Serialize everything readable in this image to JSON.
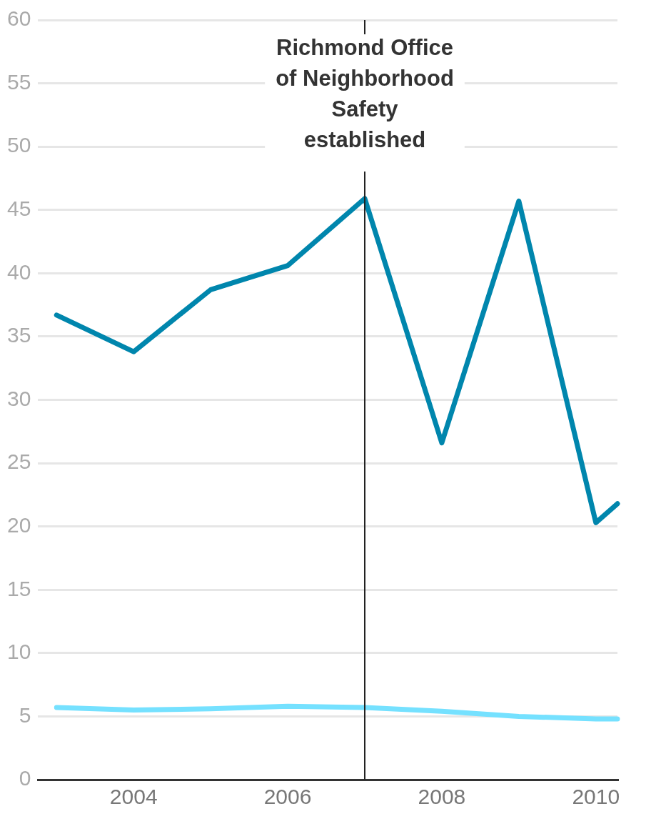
{
  "chart_data": {
    "type": "line",
    "x": [
      2003,
      2004,
      2005,
      2006,
      2007,
      2008,
      2009,
      2010,
      2010.28
    ],
    "series": [
      {
        "color": "#0086ad",
        "values": [
          36.7,
          33.8,
          38.7,
          40.6,
          45.9,
          26.6,
          45.7,
          20.3,
          21.8
        ]
      },
      {
        "color": "#75e1ff",
        "values": [
          5.7,
          5.5,
          5.6,
          5.8,
          5.7,
          5.4,
          5.0,
          4.8,
          4.8
        ]
      }
    ],
    "xlim": [
      2002.76,
      2010.28
    ],
    "xticks": [
      2004,
      2006,
      2008,
      2010
    ],
    "ylim": [
      0,
      60
    ],
    "yticks": [
      0,
      5,
      10,
      15,
      20,
      25,
      30,
      35,
      40,
      45,
      50,
      55,
      60
    ],
    "ref_lines": [
      {
        "axis": "x",
        "value": 2007,
        "label": "Richmond Office of Neighborhood Safety established",
        "color": "#222222"
      }
    ],
    "grid": "y",
    "legend": false,
    "marker": "none",
    "line_style": "solid"
  }
}
